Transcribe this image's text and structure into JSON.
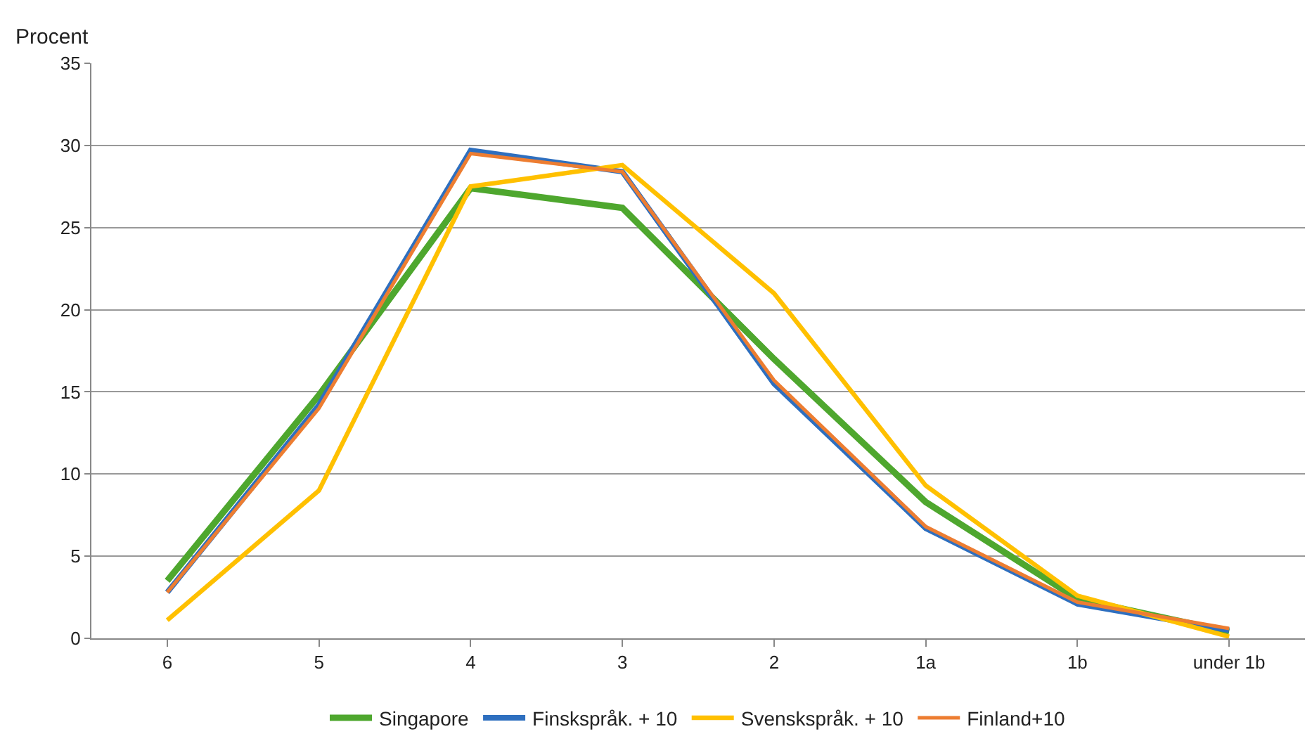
{
  "chart_data": {
    "type": "line",
    "ylabel": "Procent",
    "categories": [
      "6",
      "5",
      "4",
      "3",
      "2",
      "1a",
      "1b",
      "under 1b"
    ],
    "series": [
      {
        "name": "Singapore",
        "color": "#4ea72e",
        "values": [
          3.5,
          14.8,
          27.4,
          26.2,
          17.0,
          8.3,
          2.4,
          0.4
        ]
      },
      {
        "name": "Finskspråk. + 10",
        "color": "#2e6fbf",
        "values": [
          2.8,
          14.2,
          29.7,
          28.4,
          15.5,
          6.7,
          2.1,
          0.5
        ]
      },
      {
        "name": "Svenskspråk. + 10",
        "color": "#ffc000",
        "values": [
          1.1,
          9.0,
          27.5,
          28.8,
          21.0,
          9.3,
          2.6,
          0.1
        ]
      },
      {
        "name": "Finland+10",
        "color": "#ed7d31",
        "values": [
          2.8,
          14.0,
          29.5,
          28.4,
          15.7,
          6.8,
          2.2,
          0.6
        ]
      }
    ],
    "ylim": [
      0,
      35
    ],
    "yticks": [
      0,
      5,
      10,
      15,
      20,
      25,
      30,
      35
    ],
    "grid": "y",
    "legend": "bottom",
    "marker": "none",
    "line_style": "solid"
  }
}
